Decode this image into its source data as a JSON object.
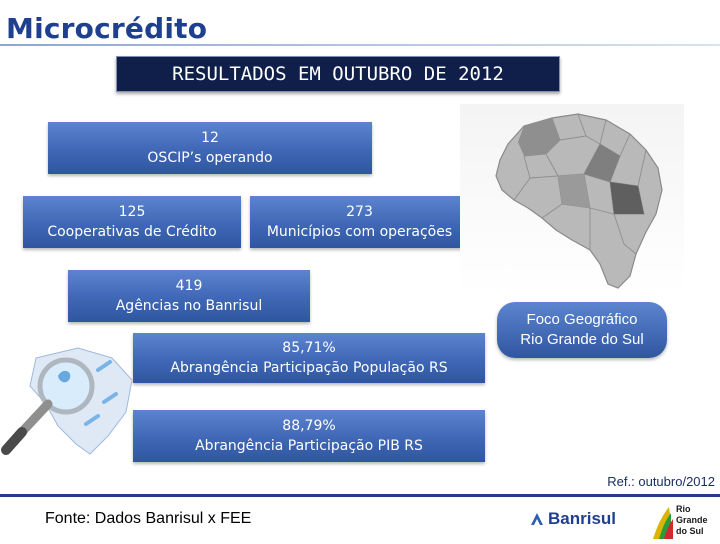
{
  "header": {
    "title": "Microcrédito",
    "subtitle": "RESULTADOS EM OUTUBRO DE 2012"
  },
  "cards": {
    "oscip": {
      "value": "12",
      "label": "OSCIP’s operando"
    },
    "cooperativas": {
      "value": "125",
      "label": "Cooperativas de Crédito"
    },
    "municipios": {
      "value": "273",
      "label": "Municípios com operações"
    },
    "agencias": {
      "value": "419",
      "label": "Agências no Banrisul"
    },
    "populacao": {
      "value": "85,71%",
      "label": "Abrangência Participação População RS"
    },
    "pib": {
      "value": "88,79%",
      "label": "Abrangência Participação PIB RS"
    }
  },
  "map": {
    "icon": "rio-grande-do-sul-map",
    "caption_line1": "Foco Geográfico",
    "caption_line2": "Rio Grande do Sul"
  },
  "footer": {
    "ref": "Ref.: outubro/2012",
    "source": "Fonte: Dados Banrisul x FEE",
    "bank_logo_text": "Banrisul",
    "state_logo_line1": "Rio",
    "state_logo_line2": "Grande",
    "state_logo_line3": "do Sul"
  },
  "colors": {
    "title": "#1f3f8f",
    "card": "#3f67b5",
    "subtitle_bg": "#0f1f4a"
  }
}
